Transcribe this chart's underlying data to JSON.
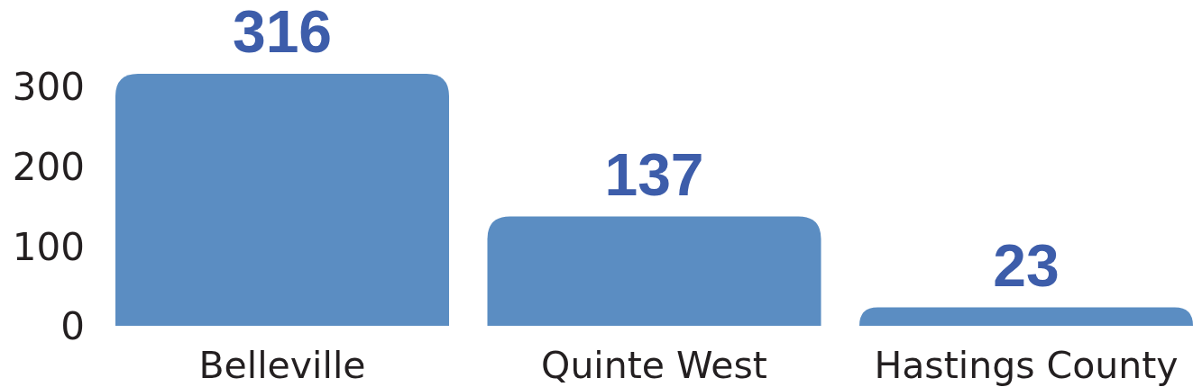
{
  "chart_data": {
    "type": "bar",
    "categories": [
      "Belleville",
      "Quinte West",
      "Hastings County"
    ],
    "values": [
      316,
      137,
      23
    ],
    "color": "#5b8dc2",
    "ylim": [
      0,
      316
    ],
    "yticks": [
      0,
      100,
      200,
      300
    ],
    "data_labels": true
  }
}
